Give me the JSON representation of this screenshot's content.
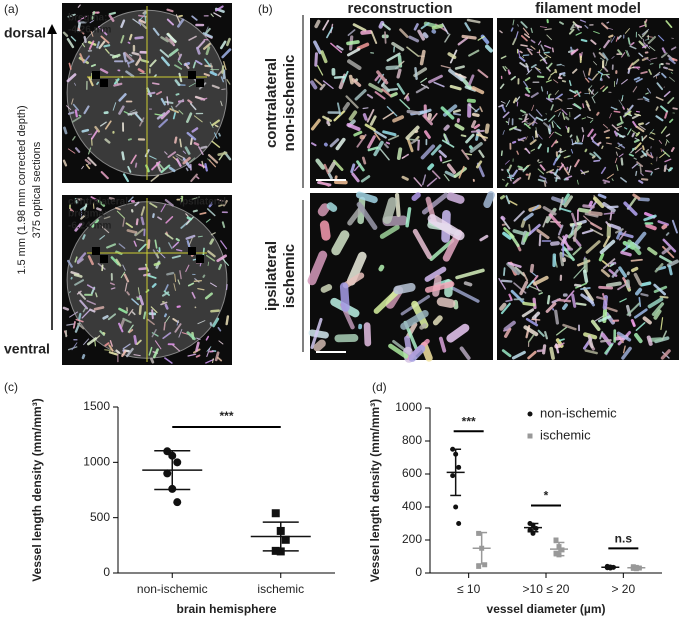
{
  "panels": {
    "a": "(a)",
    "b": "(b)",
    "c": "(c)",
    "d": "(d)"
  },
  "panel_a": {
    "top": "dorsal",
    "bottom": "ventral",
    "axis_label": "1.5 mm (1.98 mm corrected depth)",
    "axis_sublabel": "375 optical sections",
    "image1": {
      "label": "bregma:",
      "value": "-4.26 mm"
    },
    "image2": {
      "left": "contralateral",
      "right": "ipsilateral",
      "label": "bregma:",
      "value": "-6.24 mm"
    }
  },
  "panel_b": {
    "columns": [
      "reconstruction",
      "filament model"
    ],
    "rows": [
      {
        "line1": "contralateral",
        "line2": "non-ischemic"
      },
      {
        "line1": "ipsilateral",
        "line2": "ischemic"
      }
    ]
  },
  "chart_data": [
    {
      "type": "strip",
      "ylabel": "Vessel length density (mm/mm³)",
      "xlabel": "brain hemisphere",
      "categories": [
        "non-ischemic",
        "ischemic"
      ],
      "markers": [
        "circle",
        "square"
      ],
      "ylim": [
        0,
        1500
      ],
      "yticks": [
        0,
        500,
        1000,
        1500
      ],
      "series": [
        {
          "color": "#111111",
          "values": [
            [
              1100,
              1060,
              1000,
              900,
              760,
              640
            ],
            [
              540,
              380,
              300,
              200,
              195
            ]
          ],
          "mean": [
            930,
            330
          ],
          "sd": [
            175,
            130
          ]
        }
      ],
      "significance": [
        "***"
      ]
    },
    {
      "type": "strip",
      "ylabel": "Vessel length density (mm/mm³)",
      "xlabel": "vessel diameter (µm)",
      "categories": [
        "≤ 10",
        ">10 ≤ 20",
        "> 20"
      ],
      "ylim": [
        0,
        1000
      ],
      "yticks": [
        0,
        200,
        400,
        600,
        800,
        1000
      ],
      "series": [
        {
          "name": "non-ischemic",
          "color": "#111111",
          "marker": "circle",
          "values": [
            [
              750,
              720,
              640,
              590,
              400,
              300
            ],
            [
              300,
              290,
              270,
              260,
              240
            ],
            [
              40,
              36,
              34,
              32,
              30
            ]
          ],
          "mean": [
            610,
            275,
            35
          ],
          "sd": [
            140,
            25,
            4
          ]
        },
        {
          "name": "ischemic",
          "color": "#999999",
          "marker": "square",
          "values": [
            [
              240,
              150,
              50,
              40
            ],
            [
              200,
              160,
              140,
              120,
              110
            ],
            [
              38,
              34,
              30,
              28,
              26
            ]
          ],
          "mean": [
            150,
            145,
            32
          ],
          "sd": [
            95,
            40,
            5
          ]
        }
      ],
      "significance": [
        "***",
        "*",
        "n.s"
      ]
    }
  ]
}
